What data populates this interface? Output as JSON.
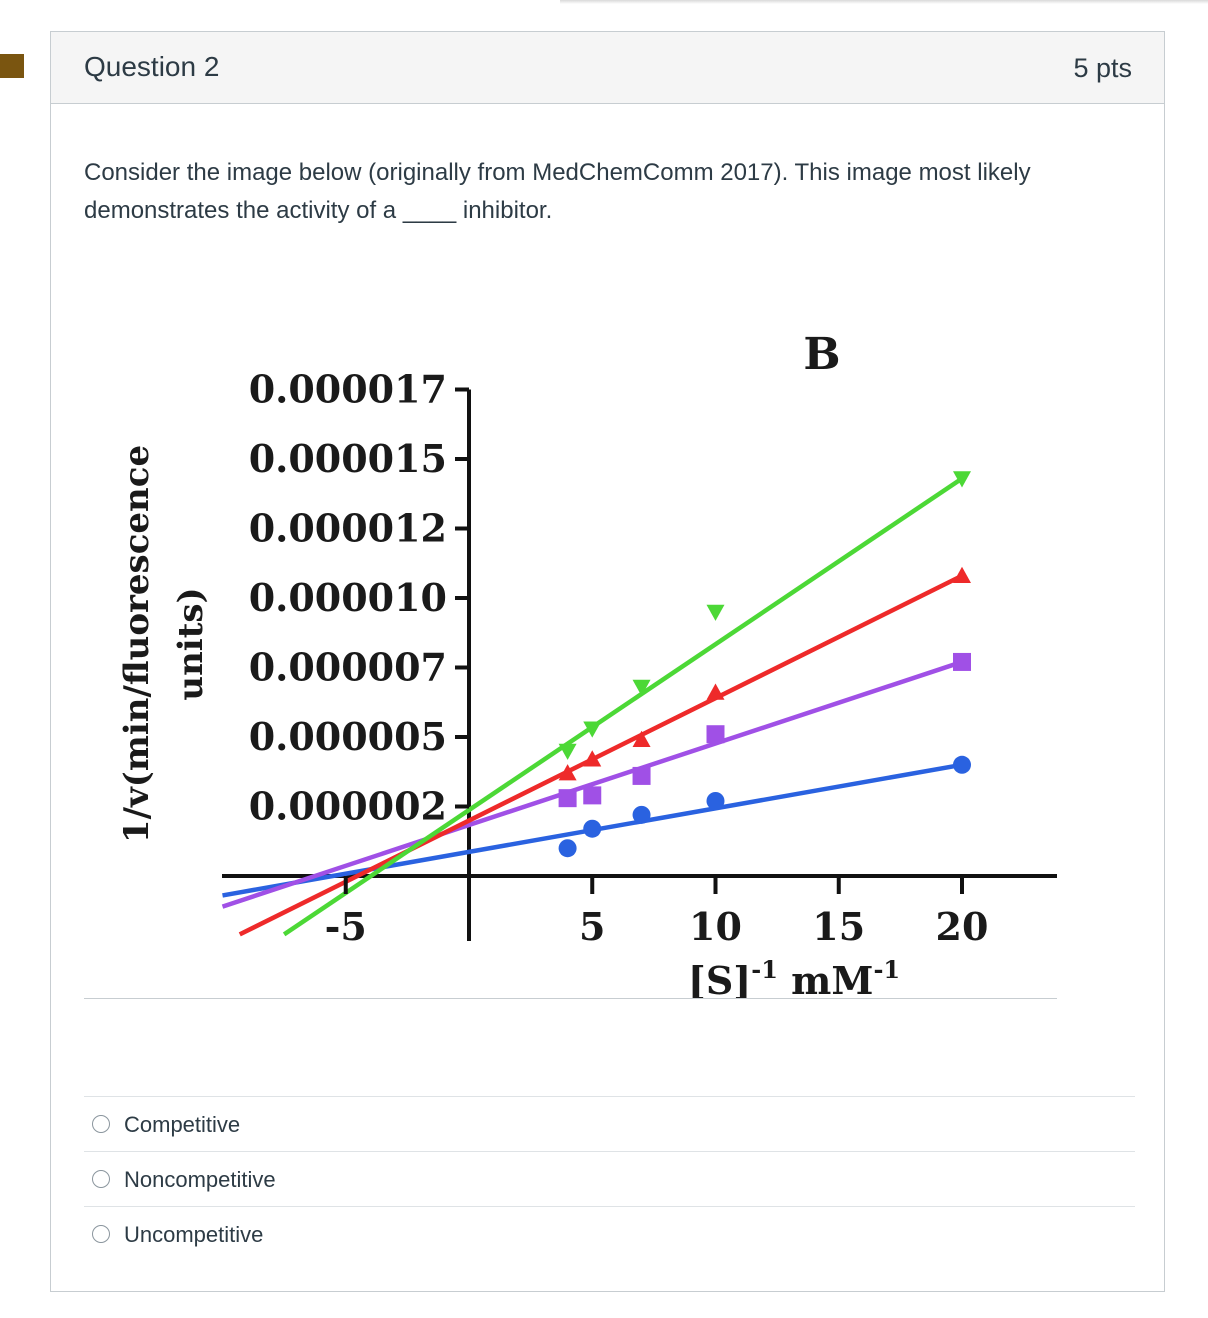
{
  "question": {
    "title": "Question 2",
    "points": "5 pts",
    "text": "Consider the image below (originally from MedChemComm 2017).  This image most likely demonstrates the activity of a ____ inhibitor."
  },
  "answers": [
    {
      "label": "Competitive"
    },
    {
      "label": "Noncompetitive"
    },
    {
      "label": "Uncompetitive"
    }
  ],
  "colors": {
    "bookmark": "#7a5510",
    "green": "#4cd836",
    "red": "#ee2a2a",
    "purple": "#a050e6",
    "blue": "#2a62e0"
  },
  "chart_data": {
    "type": "scatter",
    "panel_label": "B",
    "ylabel_line1": "1/v(min/fluorescence",
    "ylabel_line2": "units)",
    "xlabel": "[S]",
    "xlabel_sup1": "-1",
    "xlabel_unit": " mM",
    "xlabel_sup2": "-1",
    "y_tick_labels": [
      "0.000017",
      "0.000015",
      "0.000012",
      "0.000010",
      "0.000007",
      "0.000005",
      "0.000002"
    ],
    "x_tick_labels": [
      "-5",
      "5",
      "10",
      "15",
      "20"
    ],
    "x_ticks": [
      -5,
      5,
      10,
      15,
      20
    ],
    "y_ticks": [
      1.75e-05,
      1.5e-05,
      1.25e-05,
      1e-05,
      7.5e-06,
      5e-06,
      2.5e-06
    ],
    "xlim": [
      -10,
      24
    ],
    "ylim": [
      -2.5e-06,
      1.9e-05
    ],
    "series": [
      {
        "color": "#4cd836",
        "marker": "triangle-down",
        "points": [
          [
            4,
            4.5e-06
          ],
          [
            5,
            5.3e-06
          ],
          [
            7,
            6.8e-06
          ],
          [
            10,
            9.5e-06
          ],
          [
            20,
            1.43e-05
          ]
        ],
        "fit": [
          [
            -7.5,
            -2.1e-06
          ],
          [
            20,
            1.43e-05
          ]
        ]
      },
      {
        "color": "#ee2a2a",
        "marker": "triangle-up",
        "points": [
          [
            4,
            3.7e-06
          ],
          [
            5,
            4.2e-06
          ],
          [
            7,
            4.9e-06
          ],
          [
            10,
            6.6e-06
          ],
          [
            20,
            1.08e-05
          ]
        ],
        "fit": [
          [
            -9.3,
            -2.1e-06
          ],
          [
            20,
            1.08e-05
          ]
        ]
      },
      {
        "color": "#a050e6",
        "marker": "square",
        "points": [
          [
            4,
            2.8e-06
          ],
          [
            5,
            2.9e-06
          ],
          [
            7,
            3.6e-06
          ],
          [
            10,
            5.1e-06
          ],
          [
            20,
            7.7e-06
          ]
        ],
        "fit": [
          [
            -10,
            -1.1e-06
          ],
          [
            20,
            7.7e-06
          ]
        ]
      },
      {
        "color": "#2a62e0",
        "marker": "circle",
        "points": [
          [
            4,
            1e-06
          ],
          [
            5,
            1.7e-06
          ],
          [
            7,
            2.2e-06
          ],
          [
            10,
            2.7e-06
          ],
          [
            20,
            4e-06
          ]
        ],
        "fit": [
          [
            -10,
            -7e-07
          ],
          [
            20,
            4e-06
          ]
        ]
      }
    ]
  }
}
